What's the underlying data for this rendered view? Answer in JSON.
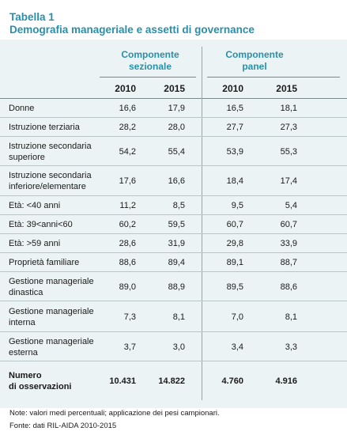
{
  "title": {
    "line1": "Tabella 1",
    "line2": "Demografia manageriale e assetti di governance"
  },
  "groups": [
    {
      "line1": "Componente",
      "line2": "sezionale"
    },
    {
      "line1": "Componente",
      "line2": "panel"
    }
  ],
  "years": [
    "2010",
    "2015",
    "2010",
    "2015"
  ],
  "rows": [
    {
      "label1": "Donne",
      "label2": "",
      "values": [
        "16,6",
        "17,9",
        "16,5",
        "18,1"
      ]
    },
    {
      "label1": "Istruzione terziaria",
      "label2": "",
      "values": [
        "28,2",
        "28,0",
        "27,7",
        "27,3"
      ]
    },
    {
      "label1": "Istruzione secondaria",
      "label2": "superiore",
      "values": [
        "54,2",
        "55,4",
        "53,9",
        "55,3"
      ]
    },
    {
      "label1": "Istruzione secondaria",
      "label2": "inferiore/elementare",
      "values": [
        "17,6",
        "16,6",
        "18,4",
        "17,4"
      ]
    },
    {
      "label1": "Età: <40 anni",
      "label2": "",
      "values": [
        "11,2",
        "8,5",
        "9,5",
        "5,4"
      ]
    },
    {
      "label1": "Età: 39<anni<60",
      "label2": "",
      "values": [
        "60,2",
        "59,5",
        "60,7",
        "60,7"
      ]
    },
    {
      "label1": "Età: >59 anni",
      "label2": "",
      "values": [
        "28,6",
        "31,9",
        "29,8",
        "33,9"
      ]
    },
    {
      "label1": "Proprietà familiare",
      "label2": "",
      "values": [
        "88,6",
        "89,4",
        "89,1",
        "88,7"
      ]
    },
    {
      "label1": "Gestione manageriale",
      "label2": "dinastica",
      "values": [
        "89,0",
        "88,9",
        "89,5",
        "88,6"
      ]
    },
    {
      "label1": "Gestione manageriale",
      "label2": "interna",
      "values": [
        "7,3",
        "8,1",
        "7,0",
        "8,1"
      ]
    },
    {
      "label1": "Gestione manageriale",
      "label2": "esterna",
      "values": [
        "3,7",
        "3,0",
        "3,4",
        "3,3"
      ]
    },
    {
      "label1": "Numero",
      "label2": "di osservazioni",
      "values": [
        "10.431",
        "14.822",
        "4.760",
        "4.916"
      ]
    }
  ],
  "notes": {
    "note": "Note: valori medi percentuali; applicazione dei pesi campionari.",
    "source": "Fonte: dati RIL-AIDA 2010-2015"
  },
  "colors": {
    "accent": "#2a8fa8",
    "table_bg": "#ecf3f4"
  }
}
